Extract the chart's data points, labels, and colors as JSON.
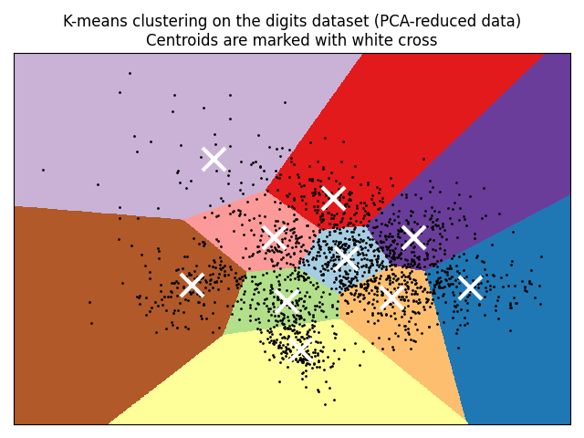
{
  "title_line1": "K-means clustering on the digits dataset (PCA-reduced data)",
  "title_line2": "Centroids are marked with white cross",
  "n_clusters": 10,
  "random_state": 42,
  "figsize": [
    6.4,
    4.8
  ],
  "dpi": 100,
  "centroid_marker": "x",
  "centroid_color": "white",
  "centroid_markersize": 18,
  "centroid_markeredgewidth": 3,
  "dot_color": "black",
  "dot_size": 2,
  "dot_alpha": 0.8,
  "title_fontsize": 12,
  "colormap": "Set1",
  "colors": [
    "#aec7e8",
    "#ffff00",
    "#ffa500",
    "#ff0000",
    "#8b4513",
    "#ffb6c1",
    "#90ee90",
    "#800080",
    "#d8b4fe",
    "#4169e1"
  ]
}
